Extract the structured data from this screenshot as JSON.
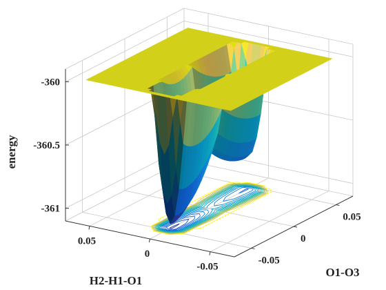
{
  "chart_data": {
    "type": "surface",
    "title": "",
    "xlabel": "O1-O3",
    "ylabel": "H2-H1-O1",
    "zlabel": "energy",
    "xlim": [
      -0.07,
      0.07
    ],
    "ylim": [
      -0.07,
      0.07
    ],
    "zlim": [
      -361.1,
      -359.9
    ],
    "zclip": -360,
    "x_ticks": [
      {
        "value": -0.05,
        "label": "-0.05"
      },
      {
        "value": 0,
        "label": "0"
      },
      {
        "value": 0.05,
        "label": "0.05"
      }
    ],
    "y_ticks": [
      {
        "value": 0.05,
        "label": "0.05"
      },
      {
        "value": 0,
        "label": "0"
      },
      {
        "value": -0.05,
        "label": "-0.05"
      }
    ],
    "z_ticks": [
      {
        "value": -360,
        "label": "-360"
      },
      {
        "value": -360.5,
        "label": "-360.5"
      },
      {
        "value": -361,
        "label": "-361"
      }
    ],
    "minima": [
      {
        "x": -0.045,
        "y": 0.0,
        "z": -361.07
      },
      {
        "x": 0.045,
        "y": 0.0,
        "z": -360.85
      }
    ],
    "saddle": {
      "x": 0.0,
      "y": 0.0,
      "z": -360.65
    },
    "colormap": "parula",
    "contours_on_floor": true,
    "grid": true
  }
}
